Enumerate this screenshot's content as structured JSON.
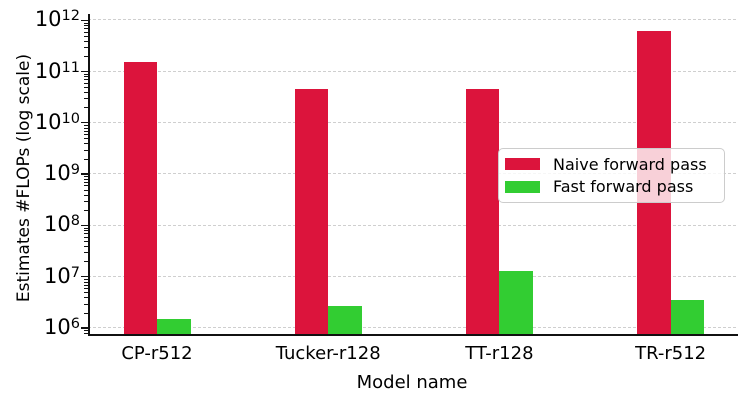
{
  "chart_data": {
    "type": "bar",
    "title": "",
    "xlabel": "Model name",
    "ylabel": "Estimates #FLOPs (log scale)",
    "yscale": "log",
    "ylim": [
      700000,
      1300000000000
    ],
    "ytick_exponents": [
      6,
      7,
      8,
      9,
      10,
      11,
      12
    ],
    "grid": "horizontal-dashed",
    "legend_position": "center-right",
    "categories": [
      "CP-r512",
      "Tucker-r128",
      "TT-r128",
      "TR-r512"
    ],
    "series": [
      {
        "name": "Naive forward pass",
        "color": "#DC143C",
        "values": [
          150000000000,
          46000000000,
          45000000000,
          620000000000
        ]
      },
      {
        "name": "Fast forward pass",
        "color": "#32CD32",
        "values": [
          1500000,
          2700000,
          13000000,
          3500000
        ]
      }
    ]
  }
}
